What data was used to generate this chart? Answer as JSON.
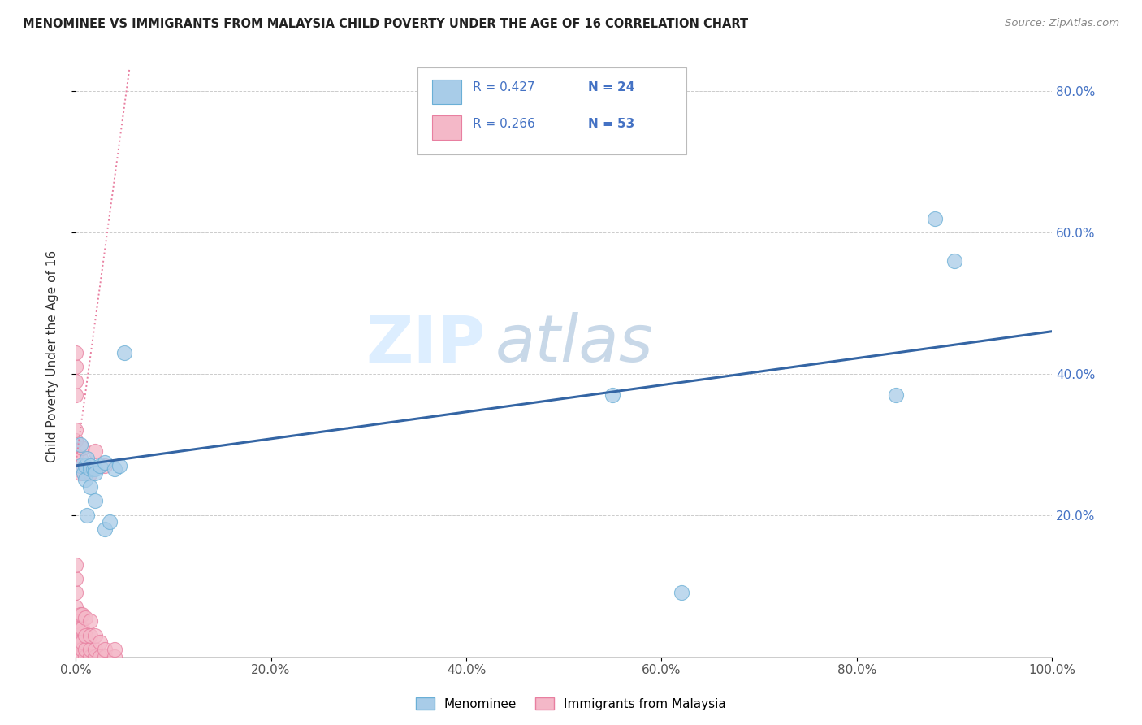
{
  "title": "MENOMINEE VS IMMIGRANTS FROM MALAYSIA CHILD POVERTY UNDER THE AGE OF 16 CORRELATION CHART",
  "source": "Source: ZipAtlas.com",
  "ylabel": "Child Poverty Under the Age of 16",
  "xlim": [
    0.0,
    1.0
  ],
  "ylim": [
    0.0,
    0.85
  ],
  "xticks": [
    0.0,
    0.2,
    0.4,
    0.6,
    0.8,
    1.0
  ],
  "xticklabels": [
    "0.0%",
    "20.0%",
    "40.0%",
    "60.0%",
    "80.0%",
    "100.0%"
  ],
  "ytick_vals": [
    0.2,
    0.4,
    0.6,
    0.8
  ],
  "yticklabels": [
    "20.0%",
    "40.0%",
    "60.0%",
    "80.0%"
  ],
  "menominee_color": "#A8CCE8",
  "malaysia_color": "#F4B8C8",
  "menominee_edge": "#6AAFD6",
  "malaysia_edge": "#E87FA0",
  "trendline_menominee_color": "#3465A4",
  "trendline_malaysia_color": "#E87FA0",
  "grid_color": "#CCCCCC",
  "right_label_color": "#4472C4",
  "menominee_x": [
    0.005,
    0.005,
    0.008,
    0.01,
    0.01,
    0.012,
    0.012,
    0.015,
    0.015,
    0.015,
    0.018,
    0.02,
    0.02,
    0.02,
    0.025,
    0.03,
    0.03,
    0.035,
    0.04,
    0.045,
    0.05,
    0.55,
    0.62,
    0.84,
    0.88,
    0.9
  ],
  "menominee_y": [
    0.27,
    0.3,
    0.26,
    0.27,
    0.25,
    0.28,
    0.2,
    0.27,
    0.265,
    0.24,
    0.265,
    0.265,
    0.26,
    0.22,
    0.27,
    0.275,
    0.18,
    0.19,
    0.265,
    0.27,
    0.43,
    0.37,
    0.09,
    0.37,
    0.62,
    0.56
  ],
  "malaysia_x": [
    0.0,
    0.0,
    0.0,
    0.0,
    0.0,
    0.0,
    0.0,
    0.0,
    0.0,
    0.0,
    0.0,
    0.0,
    0.0,
    0.0,
    0.0,
    0.0,
    0.0,
    0.0,
    0.0,
    0.0,
    0.0,
    0.005,
    0.005,
    0.005,
    0.005,
    0.005,
    0.005,
    0.007,
    0.007,
    0.007,
    0.007,
    0.007,
    0.007,
    0.01,
    0.01,
    0.01,
    0.01,
    0.015,
    0.015,
    0.015,
    0.015,
    0.015,
    0.02,
    0.02,
    0.02,
    0.02,
    0.025,
    0.025,
    0.03,
    0.03,
    0.03,
    0.04,
    0.04
  ],
  "malaysia_y": [
    0.0,
    0.0,
    0.0,
    0.0,
    0.01,
    0.02,
    0.03,
    0.04,
    0.05,
    0.07,
    0.09,
    0.11,
    0.13,
    0.265,
    0.285,
    0.305,
    0.32,
    0.37,
    0.39,
    0.41,
    0.43,
    0.0,
    0.02,
    0.04,
    0.06,
    0.26,
    0.28,
    0.0,
    0.01,
    0.02,
    0.04,
    0.06,
    0.295,
    0.0,
    0.01,
    0.03,
    0.055,
    0.0,
    0.01,
    0.03,
    0.05,
    0.26,
    0.0,
    0.01,
    0.03,
    0.29,
    0.0,
    0.02,
    0.0,
    0.01,
    0.27,
    0.0,
    0.01
  ],
  "trendline_men_x0": 0.0,
  "trendline_men_x1": 1.0,
  "trendline_men_y0": 0.27,
  "trendline_men_y1": 0.46,
  "trendline_mal_x0": 0.0,
  "trendline_mal_x1": 0.055,
  "trendline_mal_y0": 0.27,
  "trendline_mal_y1": 0.83
}
